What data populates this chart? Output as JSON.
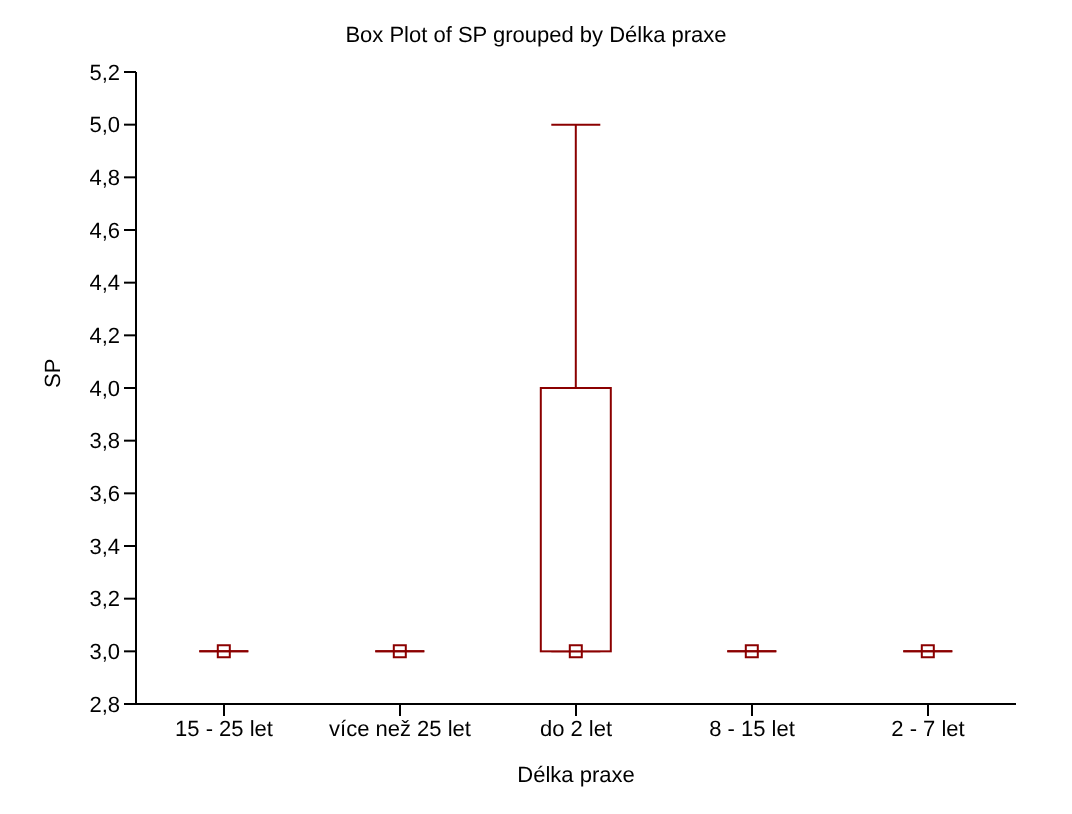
{
  "chart_data": {
    "type": "box",
    "title": "Box Plot of SP grouped by  Délka praxe",
    "xlabel": "Délka praxe",
    "ylabel": "SP",
    "categories": [
      "15 - 25 let",
      "více než 25 let",
      "do 2 let",
      "8 - 15 let",
      "2 - 7 let"
    ],
    "boxes": [
      {
        "low": 3.0,
        "q1": 3.0,
        "median": 3.0,
        "q3": 3.0,
        "high": 3.0
      },
      {
        "low": 3.0,
        "q1": 3.0,
        "median": 3.0,
        "q3": 3.0,
        "high": 3.0
      },
      {
        "low": 3.0,
        "q1": 3.0,
        "median": 3.0,
        "q3": 4.0,
        "high": 5.0
      },
      {
        "low": 3.0,
        "q1": 3.0,
        "median": 3.0,
        "q3": 3.0,
        "high": 3.0
      },
      {
        "low": 3.0,
        "q1": 3.0,
        "median": 3.0,
        "q3": 3.0,
        "high": 3.0
      }
    ],
    "color": "#8b0000",
    "marker": "square",
    "ylim": [
      2.8,
      5.2
    ],
    "yticks": [
      {
        "value": 2.8,
        "label": "2,8"
      },
      {
        "value": 3.0,
        "label": "3,0"
      },
      {
        "value": 3.2,
        "label": "3,2"
      },
      {
        "value": 3.4,
        "label": "3,4"
      },
      {
        "value": 3.6,
        "label": "3,6"
      },
      {
        "value": 3.8,
        "label": "3,8"
      },
      {
        "value": 4.0,
        "label": "4,0"
      },
      {
        "value": 4.2,
        "label": "4,2"
      },
      {
        "value": 4.4,
        "label": "4,4"
      },
      {
        "value": 4.6,
        "label": "4,6"
      },
      {
        "value": 4.8,
        "label": "4,8"
      },
      {
        "value": 5.0,
        "label": "5,0"
      },
      {
        "value": 5.2,
        "label": "5,2"
      }
    ]
  }
}
